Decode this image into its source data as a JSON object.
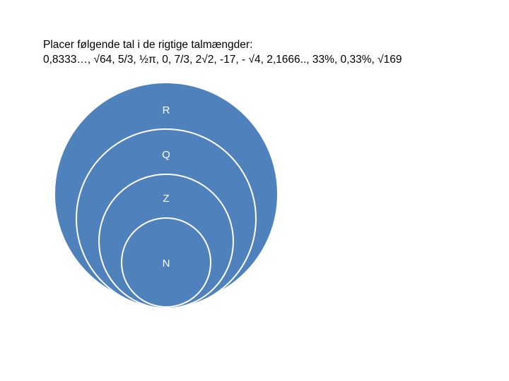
{
  "slide": {
    "instruction": "Placer følgende tal i de rigtige talmængder:",
    "numbers": "0,8333…, √64,  5/3,  ½π,  0,  7/3,  2√2,  -17,  - √4,  2,1666..,  33%,  0,33%,  √169"
  },
  "diagram": {
    "fill_color": "#4f81bd",
    "stroke_color": "#ffffff",
    "sets": [
      {
        "label": "R"
      },
      {
        "label": "Q"
      },
      {
        "label": "Z"
      },
      {
        "label": "N"
      }
    ]
  }
}
